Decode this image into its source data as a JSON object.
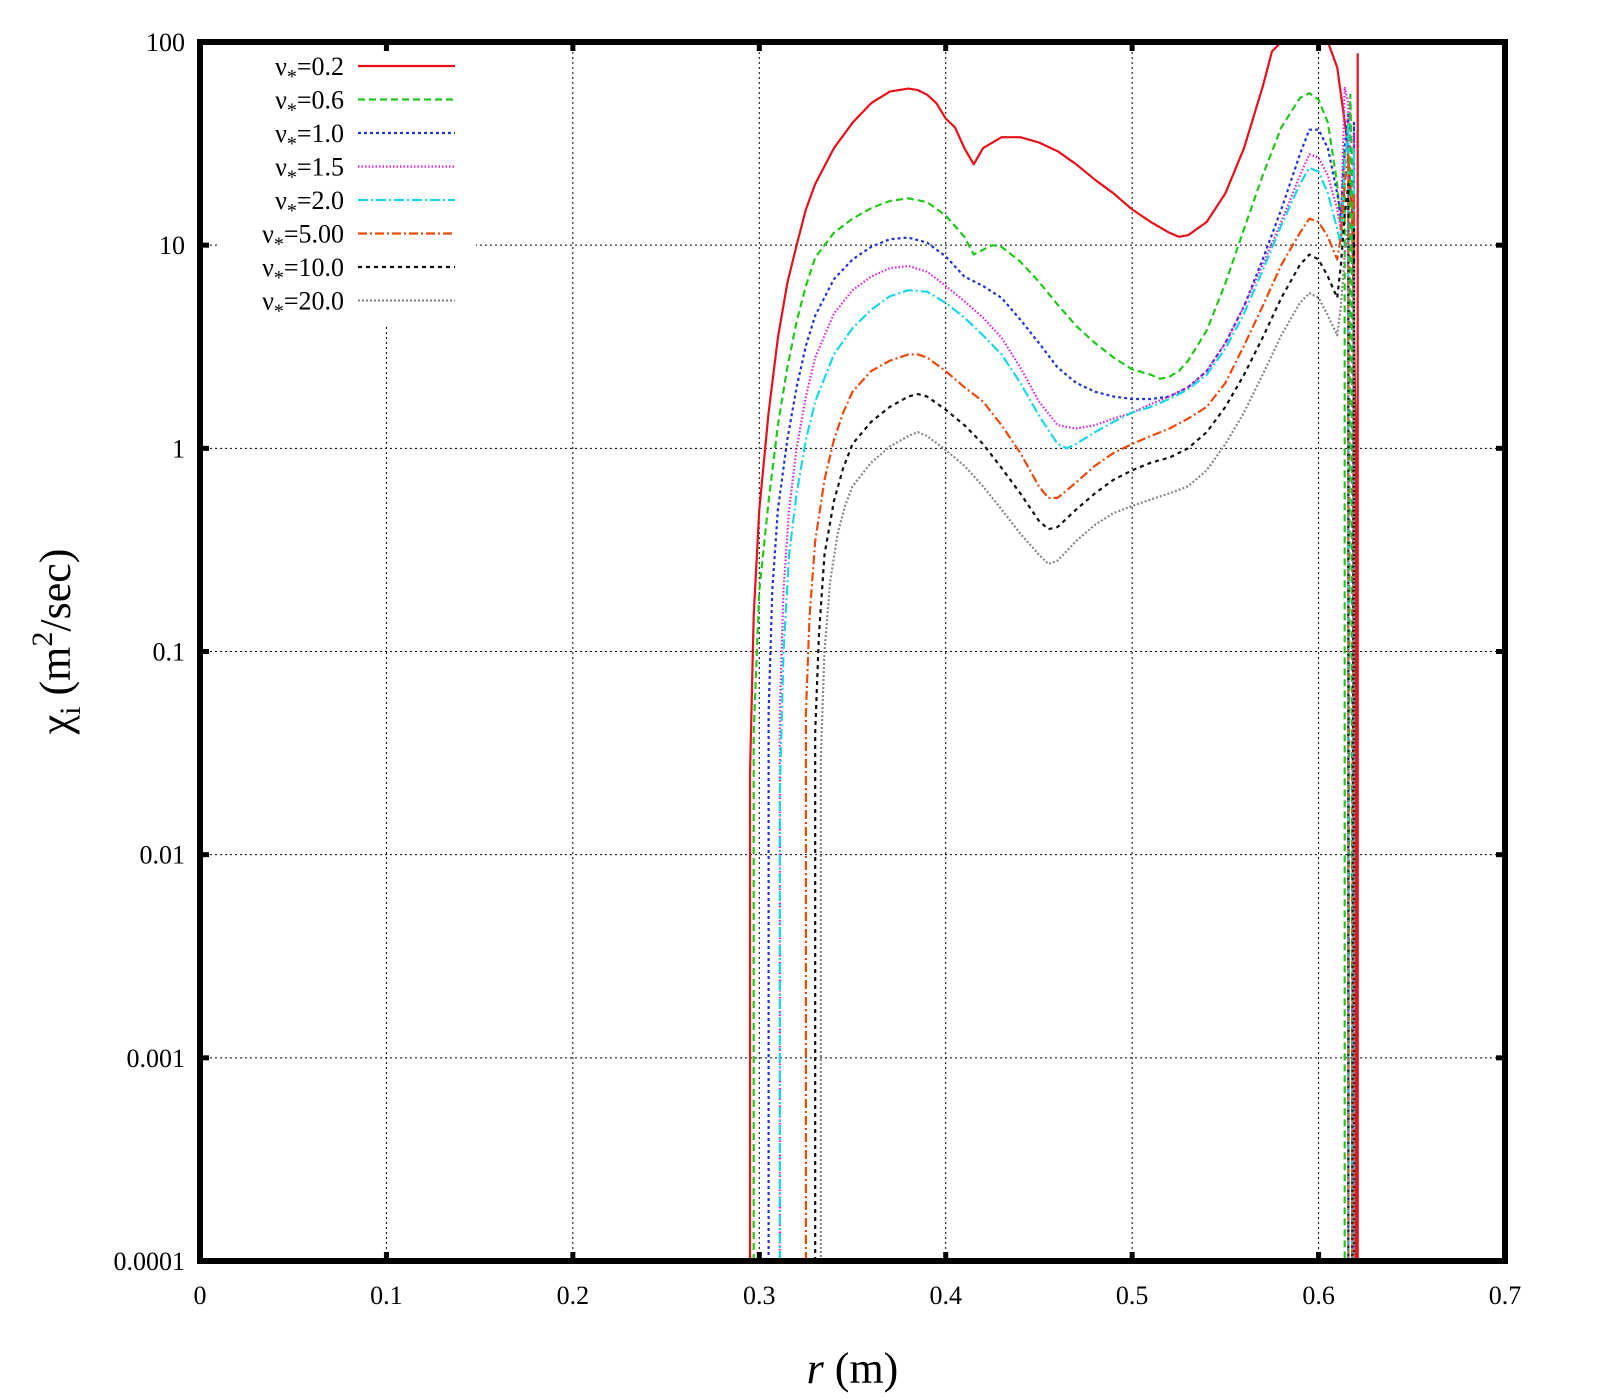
{
  "chart_data": {
    "type": "line",
    "title": "",
    "xlabel": {
      "italic": "r",
      "rest": " (m)"
    },
    "ylabel": {
      "chi": "χ",
      "sub": "i",
      "rest1": " (m",
      "sup": "2",
      "rest2": "/sec)"
    },
    "xlim": [
      0,
      0.7
    ],
    "ylim": [
      0.0001,
      100
    ],
    "yscale": "log",
    "grid": true,
    "legend_position": "top-left",
    "x_ticks": [
      "0",
      "0.1",
      "0.2",
      "0.3",
      "0.4",
      "0.5",
      "0.6",
      "0.7"
    ],
    "x_tick_values": [
      0,
      0.1,
      0.2,
      0.3,
      0.4,
      0.5,
      0.6,
      0.7
    ],
    "y_ticks": [
      "0.0001",
      "0.001",
      "0.01",
      "0.1",
      "1",
      "10",
      "100"
    ],
    "y_tick_values": [
      0.0001,
      0.001,
      0.01,
      0.1,
      1,
      10,
      100
    ],
    "series": [
      {
        "name": "ν*=0.2",
        "label_main": "ν",
        "label_sub": "*",
        "label_rest": "=0.2",
        "color": "#e8101a",
        "dash": "",
        "x": [
          0.295,
          0.295,
          0.297,
          0.3,
          0.305,
          0.31,
          0.315,
          0.32,
          0.325,
          0.33,
          0.34,
          0.35,
          0.36,
          0.37,
          0.38,
          0.385,
          0.39,
          0.395,
          0.4,
          0.405,
          0.41,
          0.415,
          0.42,
          0.43,
          0.44,
          0.45,
          0.46,
          0.47,
          0.48,
          0.49,
          0.5,
          0.51,
          0.52,
          0.525,
          0.53,
          0.54,
          0.55,
          0.56,
          0.57,
          0.575,
          0.58,
          0.59,
          0.6,
          0.605,
          0.61,
          0.615,
          0.618,
          0.62,
          0.62,
          0.621,
          0.621
        ],
        "y": [
          0.0001,
          0.025,
          0.15,
          0.5,
          1.5,
          3.5,
          6.5,
          10,
          15,
          20,
          30,
          40,
          50,
          57,
          59,
          58,
          55,
          50,
          42,
          38,
          30,
          25,
          30,
          34,
          34,
          32,
          29,
          25,
          21,
          18,
          15,
          13,
          11.5,
          11,
          11.2,
          13,
          18,
          30,
          60,
          90,
          100,
          100,
          100,
          100,
          75,
          35,
          15,
          1,
          0.0001,
          0.0001,
          88
        ]
      },
      {
        "name": "ν*=0.6",
        "label_main": "ν",
        "label_sub": "*",
        "label_rest": "=0.6",
        "color": "#22c81a",
        "dash": "7,4",
        "x": [
          0.297,
          0.297,
          0.3,
          0.305,
          0.31,
          0.315,
          0.32,
          0.325,
          0.33,
          0.34,
          0.35,
          0.36,
          0.37,
          0.38,
          0.39,
          0.4,
          0.41,
          0.415,
          0.42,
          0.425,
          0.43,
          0.44,
          0.45,
          0.46,
          0.47,
          0.48,
          0.49,
          0.5,
          0.51,
          0.515,
          0.52,
          0.525,
          0.53,
          0.54,
          0.55,
          0.56,
          0.57,
          0.58,
          0.59,
          0.595,
          0.6,
          0.605,
          0.61,
          0.612,
          0.614,
          0.614,
          0.616,
          0.617,
          0.618,
          0.618
        ],
        "y": [
          0.0001,
          0.04,
          0.2,
          0.55,
          1.3,
          2.5,
          4.2,
          6.3,
          8.7,
          11.5,
          13.5,
          15.2,
          16.5,
          17,
          16.3,
          14,
          11,
          9,
          9.5,
          10,
          9.8,
          8.3,
          6.6,
          5.1,
          4,
          3.3,
          2.8,
          2.45,
          2.3,
          2.2,
          2.25,
          2.4,
          2.7,
          3.8,
          6.5,
          12,
          22,
          38,
          53,
          56,
          52,
          40,
          20,
          12,
          30,
          0.0001,
          0.0001,
          55,
          20,
          0.0001
        ]
      },
      {
        "name": "ν*=1.0",
        "label_main": "ν",
        "label_sub": "*",
        "label_rest": "=1.0",
        "color": "#2233d8",
        "dash": "3,3",
        "x": [
          0.305,
          0.305,
          0.307,
          0.31,
          0.315,
          0.32,
          0.325,
          0.33,
          0.34,
          0.35,
          0.36,
          0.37,
          0.38,
          0.39,
          0.4,
          0.41,
          0.42,
          0.43,
          0.44,
          0.45,
          0.46,
          0.47,
          0.48,
          0.49,
          0.5,
          0.51,
          0.52,
          0.53,
          0.54,
          0.55,
          0.56,
          0.57,
          0.58,
          0.59,
          0.595,
          0.6,
          0.605,
          0.61,
          0.612,
          0.614,
          0.616,
          0.616,
          0.618,
          0.619,
          0.619
        ],
        "y": [
          0.0001,
          0.05,
          0.2,
          0.5,
          1.1,
          2,
          3.2,
          4.5,
          6.8,
          8.5,
          9.8,
          10.7,
          10.9,
          10.3,
          8.8,
          7,
          6.3,
          5.5,
          4.3,
          3.3,
          2.5,
          2.1,
          1.9,
          1.8,
          1.75,
          1.75,
          1.8,
          2,
          2.4,
          3.3,
          5,
          8.5,
          15,
          28,
          37,
          37,
          30,
          18,
          14,
          30,
          45,
          0.0001,
          0.0001,
          40,
          0.0001
        ]
      },
      {
        "name": "ν*=1.5",
        "label_main": "ν",
        "label_sub": "*",
        "label_rest": "=1.5",
        "color": "#e020e0",
        "dash": "1.5,2",
        "x": [
          0.311,
          0.311,
          0.313,
          0.316,
          0.32,
          0.325,
          0.33,
          0.34,
          0.35,
          0.36,
          0.37,
          0.38,
          0.39,
          0.4,
          0.41,
          0.42,
          0.43,
          0.44,
          0.45,
          0.46,
          0.47,
          0.48,
          0.49,
          0.5,
          0.51,
          0.52,
          0.53,
          0.54,
          0.55,
          0.56,
          0.57,
          0.58,
          0.59,
          0.595,
          0.6,
          0.605,
          0.61,
          0.612,
          0.614,
          0.616,
          0.616,
          0.618,
          0.619,
          0.619
        ],
        "y": [
          0.0001,
          0.05,
          0.2,
          0.5,
          1,
          1.8,
          2.8,
          4.6,
          6,
          7,
          7.7,
          7.9,
          7.4,
          6.3,
          5.3,
          4.4,
          3.5,
          2.5,
          1.7,
          1.3,
          1.25,
          1.3,
          1.4,
          1.5,
          1.65,
          1.8,
          2,
          2.4,
          3.3,
          5,
          8,
          13,
          22,
          28,
          27,
          22,
          15,
          12,
          60,
          50,
          0.0001,
          0.0001,
          35,
          0.0001
        ]
      },
      {
        "name": "ν*=2.0",
        "label_main": "ν",
        "label_sub": "*",
        "label_rest": "=2.0",
        "color": "#1ad8e8",
        "dash": "10,3,2,3",
        "x": [
          0.311,
          0.311,
          0.313,
          0.316,
          0.32,
          0.325,
          0.33,
          0.34,
          0.35,
          0.36,
          0.37,
          0.38,
          0.39,
          0.4,
          0.41,
          0.42,
          0.43,
          0.44,
          0.45,
          0.46,
          0.465,
          0.47,
          0.48,
          0.49,
          0.5,
          0.51,
          0.52,
          0.53,
          0.54,
          0.55,
          0.56,
          0.57,
          0.58,
          0.59,
          0.595,
          0.6,
          0.605,
          0.61,
          0.612,
          0.614,
          0.616,
          0.616,
          0.618,
          0.619,
          0.619
        ],
        "y": [
          0.0001,
          0.02,
          0.1,
          0.3,
          0.6,
          1.1,
          1.7,
          2.9,
          3.9,
          4.8,
          5.6,
          6,
          5.9,
          5.2,
          4.4,
          3.6,
          2.9,
          2.1,
          1.45,
          1.05,
          1,
          1.05,
          1.2,
          1.35,
          1.5,
          1.6,
          1.75,
          1.95,
          2.3,
          3.1,
          4.6,
          7.5,
          12.5,
          20,
          24,
          23,
          18,
          12,
          10,
          25,
          40,
          0.0001,
          0.0001,
          30,
          0.0001
        ]
      },
      {
        "name": "ν*=5.00",
        "label_main": "ν",
        "label_sub": "*",
        "label_rest": "=5.00",
        "color": "#ee4a0e",
        "dash": "9,3,2,3",
        "x": [
          0.325,
          0.325,
          0.327,
          0.33,
          0.335,
          0.34,
          0.345,
          0.35,
          0.36,
          0.37,
          0.38,
          0.385,
          0.39,
          0.4,
          0.41,
          0.42,
          0.43,
          0.44,
          0.45,
          0.455,
          0.46,
          0.47,
          0.48,
          0.49,
          0.5,
          0.51,
          0.52,
          0.53,
          0.54,
          0.55,
          0.56,
          0.57,
          0.58,
          0.59,
          0.595,
          0.6,
          0.605,
          0.61,
          0.612,
          0.614,
          0.616,
          0.616,
          0.618,
          0.619,
          0.619
        ],
        "y": [
          0.0001,
          0.05,
          0.15,
          0.35,
          0.7,
          1.1,
          1.5,
          1.9,
          2.4,
          2.7,
          2.9,
          2.9,
          2.8,
          2.4,
          2,
          1.7,
          1.3,
          0.95,
          0.65,
          0.57,
          0.57,
          0.68,
          0.82,
          0.95,
          1.05,
          1.15,
          1.25,
          1.4,
          1.6,
          2.1,
          3.2,
          5,
          8,
          11.5,
          13.5,
          13,
          11,
          8.5,
          11,
          20,
          28,
          0.0001,
          0.0001,
          18,
          0.0001
        ]
      },
      {
        "name": "ν*=10.0",
        "label_main": "ν",
        "label_sub": "*",
        "label_rest": "=10.0",
        "color": "#111111",
        "dash": "4,4",
        "x": [
          0.33,
          0.33,
          0.332,
          0.335,
          0.34,
          0.345,
          0.35,
          0.36,
          0.37,
          0.38,
          0.385,
          0.39,
          0.4,
          0.41,
          0.42,
          0.43,
          0.44,
          0.45,
          0.455,
          0.46,
          0.47,
          0.48,
          0.49,
          0.5,
          0.51,
          0.52,
          0.53,
          0.54,
          0.55,
          0.56,
          0.57,
          0.58,
          0.59,
          0.595,
          0.6,
          0.605,
          0.61,
          0.612,
          0.614,
          0.616,
          0.616,
          0.618,
          0.619,
          0.619
        ],
        "y": [
          0.0001,
          0.04,
          0.12,
          0.3,
          0.55,
          0.8,
          1.05,
          1.35,
          1.6,
          1.8,
          1.85,
          1.8,
          1.55,
          1.3,
          1.05,
          0.8,
          0.6,
          0.44,
          0.4,
          0.41,
          0.5,
          0.6,
          0.7,
          0.78,
          0.85,
          0.9,
          1,
          1.2,
          1.6,
          2.3,
          3.5,
          5.5,
          8,
          9,
          8.5,
          7,
          5.5,
          8,
          14,
          20,
          0.0001,
          0.0001,
          12,
          0.0001
        ]
      },
      {
        "name": "ν*=20.0",
        "label_main": "ν",
        "label_sub": "*",
        "label_rest": "=20.0",
        "color": "#888888",
        "dash": "2,2",
        "x": [
          0.333,
          0.333,
          0.335,
          0.338,
          0.342,
          0.346,
          0.35,
          0.36,
          0.37,
          0.38,
          0.385,
          0.39,
          0.4,
          0.41,
          0.42,
          0.43,
          0.44,
          0.45,
          0.455,
          0.46,
          0.47,
          0.48,
          0.49,
          0.5,
          0.51,
          0.52,
          0.53,
          0.54,
          0.55,
          0.56,
          0.57,
          0.58,
          0.59,
          0.595,
          0.6,
          0.605,
          0.61,
          0.612,
          0.614,
          0.616,
          0.616,
          0.618,
          0.619,
          0.619
        ],
        "y": [
          0.0001,
          0.03,
          0.1,
          0.22,
          0.38,
          0.52,
          0.65,
          0.85,
          1.02,
          1.15,
          1.2,
          1.15,
          0.98,
          0.82,
          0.65,
          0.5,
          0.38,
          0.3,
          0.27,
          0.28,
          0.35,
          0.42,
          0.48,
          0.52,
          0.56,
          0.6,
          0.65,
          0.78,
          1.05,
          1.5,
          2.3,
          3.6,
          5.2,
          5.8,
          5.5,
          4.5,
          3.6,
          5,
          9,
          13,
          0.0001,
          0.0001,
          8,
          0.0001
        ]
      }
    ]
  }
}
